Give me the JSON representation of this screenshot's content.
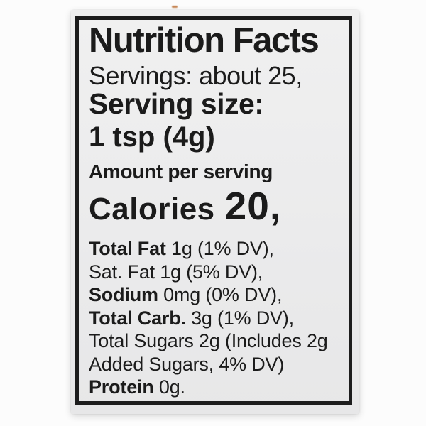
{
  "label": {
    "title": "Nutrition Facts",
    "servings_line": "Servings: about 25,",
    "serving_size_heading": "Serving size:",
    "serving_size_value": "1 tsp (4g)",
    "amount_per_serving": "Amount per serving",
    "calories_label": "Calories",
    "calories_value": "20,",
    "nutrients": [
      {
        "bold": "Total Fat",
        "rest": " 1g (1% DV),"
      },
      {
        "bold": "",
        "rest": "Sat. Fat 1g (5% DV),"
      },
      {
        "bold": "Sodium",
        "rest": " 0mg (0% DV),"
      },
      {
        "bold": "Total Carb.",
        "rest": " 3g (1% DV),"
      },
      {
        "bold": "",
        "rest": "Total Sugars 2g (Includes 2g"
      },
      {
        "bold": "",
        "rest": "Added Sugars, 4% DV)"
      },
      {
        "bold": "Protein",
        "rest": " 0g."
      }
    ],
    "colors": {
      "page_bg": "#fcfcfc",
      "card_bg": "#ececec",
      "border": "#1d1d1d",
      "text": "#1b1b1b",
      "speck": "#c0763c"
    }
  }
}
